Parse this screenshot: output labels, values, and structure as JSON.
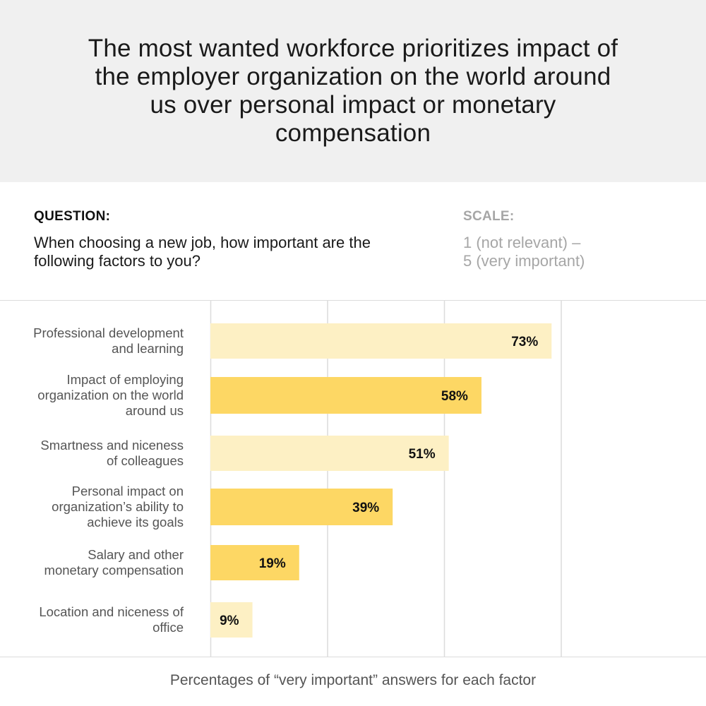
{
  "title": "The most wanted workforce prioritizes impact of the employer organization on the world around us over personal impact or monetary compensation",
  "question": {
    "label": "QUESTION:",
    "text": "When choosing a new job, how important are the following factors to you?"
  },
  "scale": {
    "label": "SCALE:",
    "line1": "1 (not relevant) –",
    "line2": "5 (very important)"
  },
  "footer": "Percentages of “very important” answers for each factor",
  "colors": {
    "bar_light": "#fdf0c4",
    "bar_dark": "#fdd764",
    "gridline": "#dcdcdc",
    "label_text": "#555555",
    "value_text": "#111111"
  },
  "chart_data": {
    "type": "bar",
    "orientation": "horizontal",
    "categories": [
      [
        "Professional development",
        "and learning"
      ],
      [
        "Impact of employing",
        "organization on the world",
        "around us"
      ],
      [
        "Smartness and niceness",
        "of colleagues"
      ],
      [
        "Personal impact on",
        "organization’s ability to",
        "achieve its goals"
      ],
      [
        "Salary and other",
        "monetary compensation"
      ],
      [
        "Location and niceness of",
        "office"
      ]
    ],
    "values": [
      73,
      58,
      51,
      39,
      19,
      9
    ],
    "value_labels": [
      "73%",
      "58%",
      "51%",
      "39%",
      "19%",
      "9%"
    ],
    "highlight": [
      false,
      true,
      false,
      true,
      true,
      false
    ],
    "xlim": [
      0,
      100
    ],
    "grid": true,
    "unit": "%"
  }
}
